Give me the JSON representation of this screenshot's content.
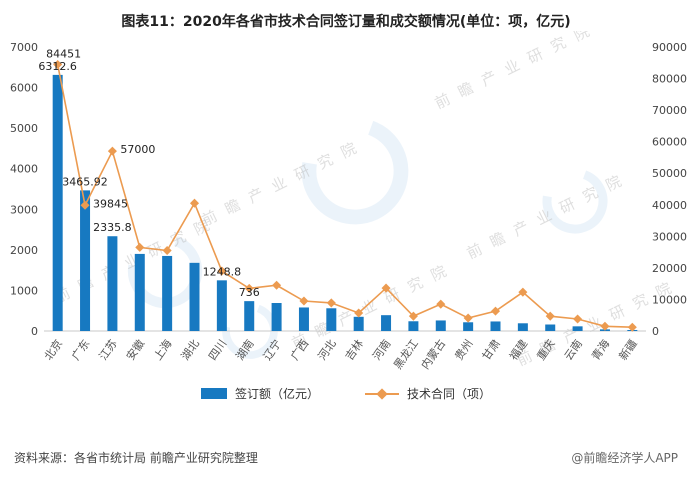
{
  "page": {
    "source_note": "资料来源：各省市统计局 前瞻产业研究院整理",
    "brand_credit": "@前瞻经济学人APP",
    "watermark_text": "前瞻产业研究院"
  },
  "chart_data": {
    "type": "bar+line",
    "title": "图表11：2020年各省市技术合同签订量和成交额情况(单位：项，亿元)",
    "categories": [
      "北京",
      "广东",
      "江苏",
      "安徽",
      "上海",
      "湖北",
      "四川",
      "湖南",
      "辽宁",
      "广西",
      "河北",
      "吉林",
      "河南",
      "黑龙江",
      "内蒙古",
      "贵州",
      "甘肃",
      "福建",
      "重庆",
      "云南",
      "青海",
      "新疆"
    ],
    "series": [
      {
        "name": "签订额（亿元）",
        "type": "bar",
        "axis": "left",
        "color": "#1779c1",
        "values": [
          6312.6,
          3465.92,
          2335.8,
          1900,
          1850,
          1680,
          1248.8,
          736,
          690,
          580,
          560,
          350,
          390,
          240,
          260,
          215,
          235,
          190,
          160,
          115,
          40,
          25
        ],
        "data_labels": [
          "6312.6",
          "3465.92",
          "2335.8",
          null,
          null,
          null,
          "1248.8",
          "736",
          null,
          null,
          null,
          null,
          null,
          null,
          null,
          null,
          null,
          null,
          null,
          null,
          null,
          null
        ]
      },
      {
        "name": "技术合同（项）",
        "type": "line",
        "axis": "right",
        "color": "#ec9b50",
        "values": [
          84451,
          39845,
          57000,
          26500,
          25500,
          40500,
          19000,
          13500,
          14500,
          9500,
          8900,
          5700,
          13600,
          4700,
          8500,
          4100,
          6300,
          12300,
          4700,
          3800,
          1500,
          1200
        ],
        "data_labels": [
          "84451",
          "39845",
          "57000",
          null,
          null,
          null,
          null,
          null,
          null,
          null,
          null,
          null,
          null,
          null,
          null,
          null,
          null,
          null,
          null,
          null,
          null,
          null
        ]
      }
    ],
    "left_axis": {
      "min": 0,
      "max": 7000,
      "step": 1000
    },
    "right_axis": {
      "min": 0,
      "max": 90000,
      "step": 10000
    },
    "legend_position": "bottom",
    "grid": false
  }
}
